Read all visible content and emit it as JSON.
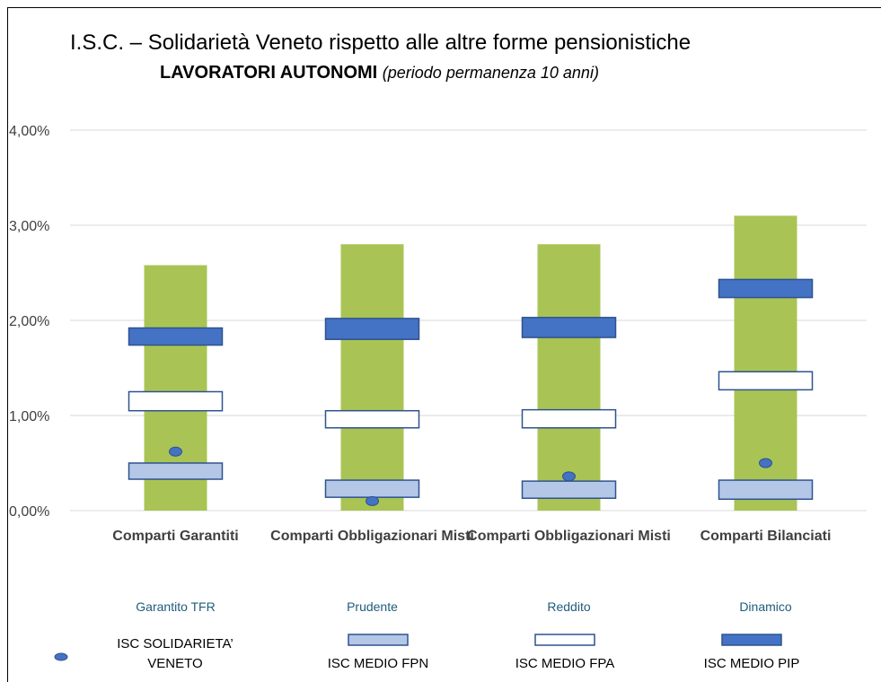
{
  "chart_data": {
    "type": "range-box",
    "title": "I.S.C. – Solidarietà Veneto rispetto alle altre forme pensionistiche",
    "subtitle": "LAVORATORI AUTONOMI",
    "subtitle_note": "(periodo permanenza 10 anni)",
    "categories": [
      "Comparti Garantiti",
      "Comparti Obbligazionari Misti",
      "Comparti Obbligazionari Misti",
      "Comparti Bilanciati"
    ],
    "subcategories": [
      "Garantito TFR",
      "Prudente",
      "Reddito",
      "Dinamico"
    ],
    "ylim": [
      0,
      4
    ],
    "yticks": [
      {
        "value": 0,
        "label": "0,00%"
      },
      {
        "value": 1,
        "label": "1,00%"
      },
      {
        "value": 2,
        "label": "2,00%"
      },
      {
        "value": 3,
        "label": "3,00%"
      },
      {
        "value": 4,
        "label": "4,00%"
      }
    ],
    "grid": true,
    "bars": {
      "color": "#a9c454",
      "values": [
        2.58,
        2.8,
        2.8,
        3.1
      ]
    },
    "series": [
      {
        "name": "ISC SOLIDARIETA’ VENETO",
        "kind": "dot",
        "color": "#4472c4",
        "values": [
          0.62,
          0.1,
          0.36,
          0.5
        ]
      },
      {
        "name": "ISC MEDIO FPN",
        "kind": "box",
        "color": "#b4c7e7",
        "low": [
          0.33,
          0.14,
          0.13,
          0.12
        ],
        "high": [
          0.5,
          0.32,
          0.31,
          0.32
        ]
      },
      {
        "name": "ISC MEDIO FPA",
        "kind": "box",
        "color": "#ffffff",
        "low": [
          1.05,
          0.87,
          0.87,
          1.27
        ],
        "high": [
          1.25,
          1.05,
          1.06,
          1.46
        ]
      },
      {
        "name": "ISC MEDIO PIP",
        "kind": "box",
        "color": "#4472c4",
        "low": [
          1.74,
          1.8,
          1.82,
          2.24
        ],
        "high": [
          1.92,
          2.02,
          2.03,
          2.43
        ]
      }
    ]
  }
}
